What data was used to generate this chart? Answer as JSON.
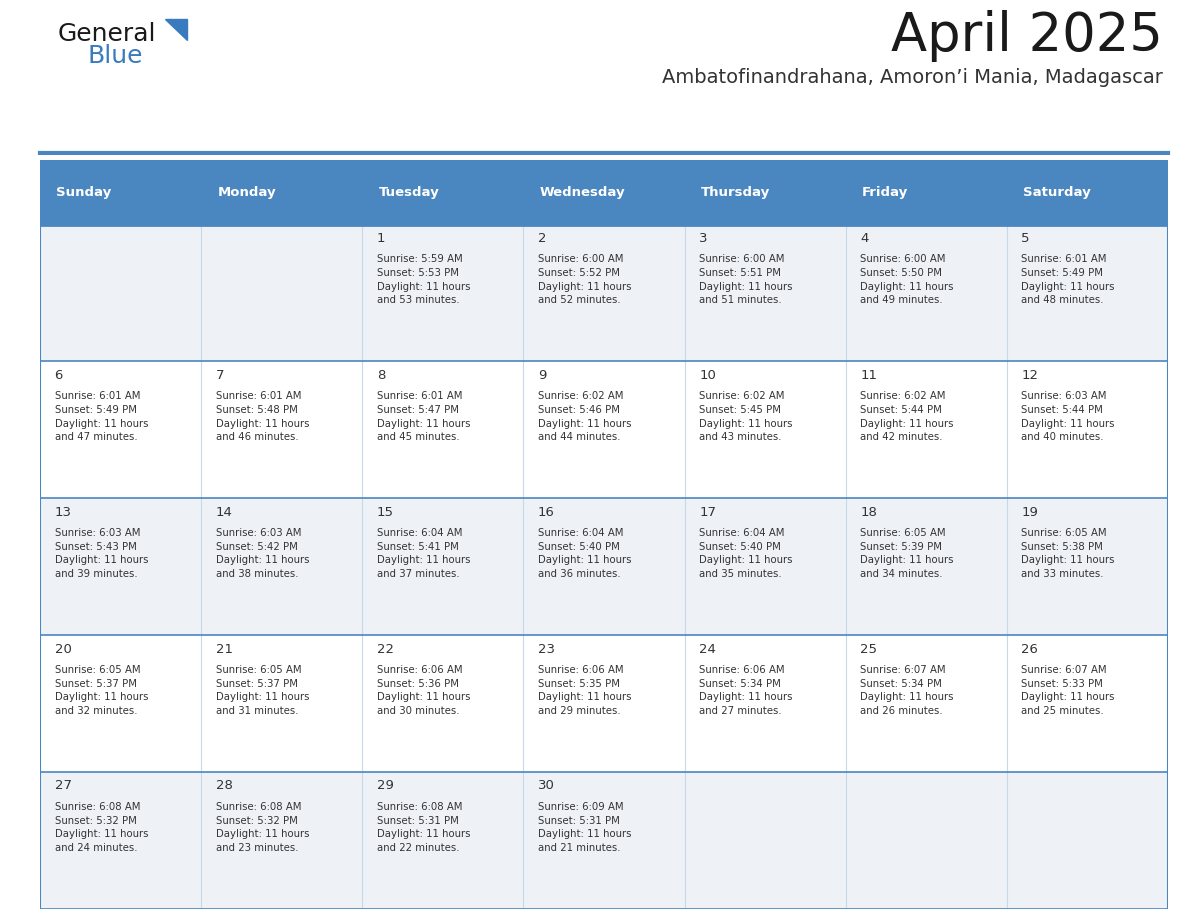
{
  "title": "April 2025",
  "subtitle": "Ambatofinandrahana, Amoron’i Mania, Madagascar",
  "header_bg_color": "#4a86c0",
  "header_text_color": "#ffffff",
  "row_bg_light": "#eef2f7",
  "row_bg_white": "#ffffff",
  "border_color": "#4a86c0",
  "cell_border_color": "#b0c4de",
  "text_color": "#333333",
  "days_of_week": [
    "Sunday",
    "Monday",
    "Tuesday",
    "Wednesday",
    "Thursday",
    "Friday",
    "Saturday"
  ],
  "weeks": [
    [
      {
        "day": "",
        "info": ""
      },
      {
        "day": "",
        "info": ""
      },
      {
        "day": "1",
        "info": "Sunrise: 5:59 AM\nSunset: 5:53 PM\nDaylight: 11 hours\nand 53 minutes."
      },
      {
        "day": "2",
        "info": "Sunrise: 6:00 AM\nSunset: 5:52 PM\nDaylight: 11 hours\nand 52 minutes."
      },
      {
        "day": "3",
        "info": "Sunrise: 6:00 AM\nSunset: 5:51 PM\nDaylight: 11 hours\nand 51 minutes."
      },
      {
        "day": "4",
        "info": "Sunrise: 6:00 AM\nSunset: 5:50 PM\nDaylight: 11 hours\nand 49 minutes."
      },
      {
        "day": "5",
        "info": "Sunrise: 6:01 AM\nSunset: 5:49 PM\nDaylight: 11 hours\nand 48 minutes."
      }
    ],
    [
      {
        "day": "6",
        "info": "Sunrise: 6:01 AM\nSunset: 5:49 PM\nDaylight: 11 hours\nand 47 minutes."
      },
      {
        "day": "7",
        "info": "Sunrise: 6:01 AM\nSunset: 5:48 PM\nDaylight: 11 hours\nand 46 minutes."
      },
      {
        "day": "8",
        "info": "Sunrise: 6:01 AM\nSunset: 5:47 PM\nDaylight: 11 hours\nand 45 minutes."
      },
      {
        "day": "9",
        "info": "Sunrise: 6:02 AM\nSunset: 5:46 PM\nDaylight: 11 hours\nand 44 minutes."
      },
      {
        "day": "10",
        "info": "Sunrise: 6:02 AM\nSunset: 5:45 PM\nDaylight: 11 hours\nand 43 minutes."
      },
      {
        "day": "11",
        "info": "Sunrise: 6:02 AM\nSunset: 5:44 PM\nDaylight: 11 hours\nand 42 minutes."
      },
      {
        "day": "12",
        "info": "Sunrise: 6:03 AM\nSunset: 5:44 PM\nDaylight: 11 hours\nand 40 minutes."
      }
    ],
    [
      {
        "day": "13",
        "info": "Sunrise: 6:03 AM\nSunset: 5:43 PM\nDaylight: 11 hours\nand 39 minutes."
      },
      {
        "day": "14",
        "info": "Sunrise: 6:03 AM\nSunset: 5:42 PM\nDaylight: 11 hours\nand 38 minutes."
      },
      {
        "day": "15",
        "info": "Sunrise: 6:04 AM\nSunset: 5:41 PM\nDaylight: 11 hours\nand 37 minutes."
      },
      {
        "day": "16",
        "info": "Sunrise: 6:04 AM\nSunset: 5:40 PM\nDaylight: 11 hours\nand 36 minutes."
      },
      {
        "day": "17",
        "info": "Sunrise: 6:04 AM\nSunset: 5:40 PM\nDaylight: 11 hours\nand 35 minutes."
      },
      {
        "day": "18",
        "info": "Sunrise: 6:05 AM\nSunset: 5:39 PM\nDaylight: 11 hours\nand 34 minutes."
      },
      {
        "day": "19",
        "info": "Sunrise: 6:05 AM\nSunset: 5:38 PM\nDaylight: 11 hours\nand 33 minutes."
      }
    ],
    [
      {
        "day": "20",
        "info": "Sunrise: 6:05 AM\nSunset: 5:37 PM\nDaylight: 11 hours\nand 32 minutes."
      },
      {
        "day": "21",
        "info": "Sunrise: 6:05 AM\nSunset: 5:37 PM\nDaylight: 11 hours\nand 31 minutes."
      },
      {
        "day": "22",
        "info": "Sunrise: 6:06 AM\nSunset: 5:36 PM\nDaylight: 11 hours\nand 30 minutes."
      },
      {
        "day": "23",
        "info": "Sunrise: 6:06 AM\nSunset: 5:35 PM\nDaylight: 11 hours\nand 29 minutes."
      },
      {
        "day": "24",
        "info": "Sunrise: 6:06 AM\nSunset: 5:34 PM\nDaylight: 11 hours\nand 27 minutes."
      },
      {
        "day": "25",
        "info": "Sunrise: 6:07 AM\nSunset: 5:34 PM\nDaylight: 11 hours\nand 26 minutes."
      },
      {
        "day": "26",
        "info": "Sunrise: 6:07 AM\nSunset: 5:33 PM\nDaylight: 11 hours\nand 25 minutes."
      }
    ],
    [
      {
        "day": "27",
        "info": "Sunrise: 6:08 AM\nSunset: 5:32 PM\nDaylight: 11 hours\nand 24 minutes."
      },
      {
        "day": "28",
        "info": "Sunrise: 6:08 AM\nSunset: 5:32 PM\nDaylight: 11 hours\nand 23 minutes."
      },
      {
        "day": "29",
        "info": "Sunrise: 6:08 AM\nSunset: 5:31 PM\nDaylight: 11 hours\nand 22 minutes."
      },
      {
        "day": "30",
        "info": "Sunrise: 6:09 AM\nSunset: 5:31 PM\nDaylight: 11 hours\nand 21 minutes."
      },
      {
        "day": "",
        "info": ""
      },
      {
        "day": "",
        "info": ""
      },
      {
        "day": "",
        "info": ""
      }
    ]
  ],
  "logo_color_general": "#1a1a1a",
  "logo_color_blue": "#3a7bbf",
  "title_color": "#1a1a1a",
  "subtitle_color": "#333333",
  "fig_width": 11.88,
  "fig_height": 9.18,
  "dpi": 100
}
